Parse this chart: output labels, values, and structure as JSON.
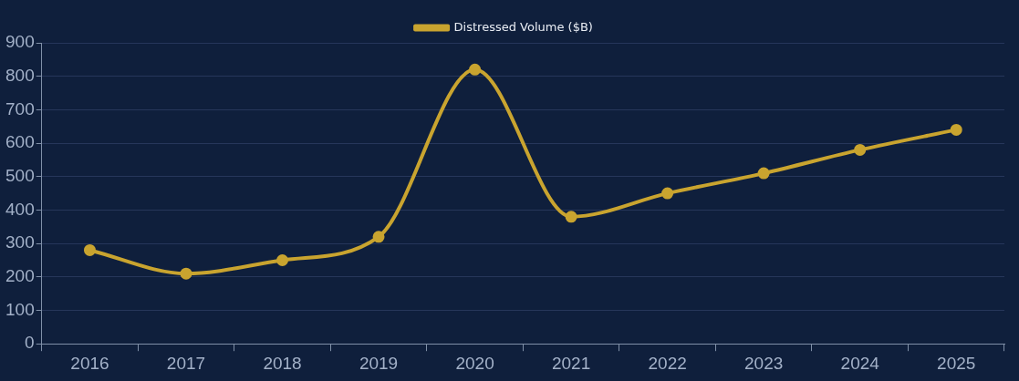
{
  "chart_data": {
    "type": "line",
    "categories": [
      "2016",
      "2017",
      "2018",
      "2019",
      "2020",
      "2021",
      "2022",
      "2023",
      "2024",
      "2025"
    ],
    "series": [
      {
        "name": "Distressed Volume ($B)",
        "color": "#c9a42f",
        "values": [
          280,
          210,
          250,
          320,
          820,
          380,
          450,
          510,
          580,
          640
        ]
      }
    ],
    "ylim": [
      0,
      900
    ],
    "yticks": [
      0,
      100,
      200,
      300,
      400,
      500,
      600,
      700,
      800,
      900
    ],
    "grid": "y",
    "legend": "top",
    "marker": "circle",
    "line_style": "solid"
  }
}
